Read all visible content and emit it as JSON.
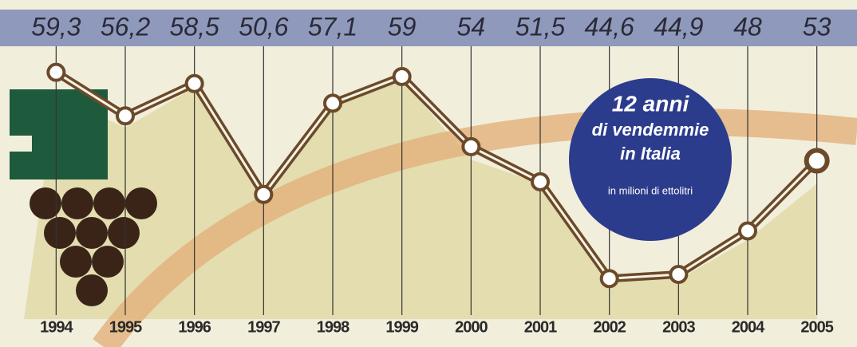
{
  "chart_data": {
    "type": "line",
    "title": [
      "12 anni",
      "di vendemmie",
      "in Italia"
    ],
    "subtitle": "in milioni di ettolitri",
    "categories": [
      "1994",
      "1995",
      "1996",
      "1997",
      "1998",
      "1999",
      "2000",
      "2001",
      "2002",
      "2003",
      "2004",
      "2005"
    ],
    "values": [
      59.3,
      56.2,
      58.5,
      50.6,
      57.1,
      59,
      54,
      51.5,
      44.6,
      44.9,
      48,
      53
    ],
    "value_labels": [
      "59,3",
      "56,2",
      "58,5",
      "50,6",
      "57,1",
      "59",
      "54",
      "51,5",
      "44,6",
      "44,9",
      "48",
      "53"
    ],
    "color": "#6b4a2a",
    "ylim": [
      42,
      64
    ]
  }
}
